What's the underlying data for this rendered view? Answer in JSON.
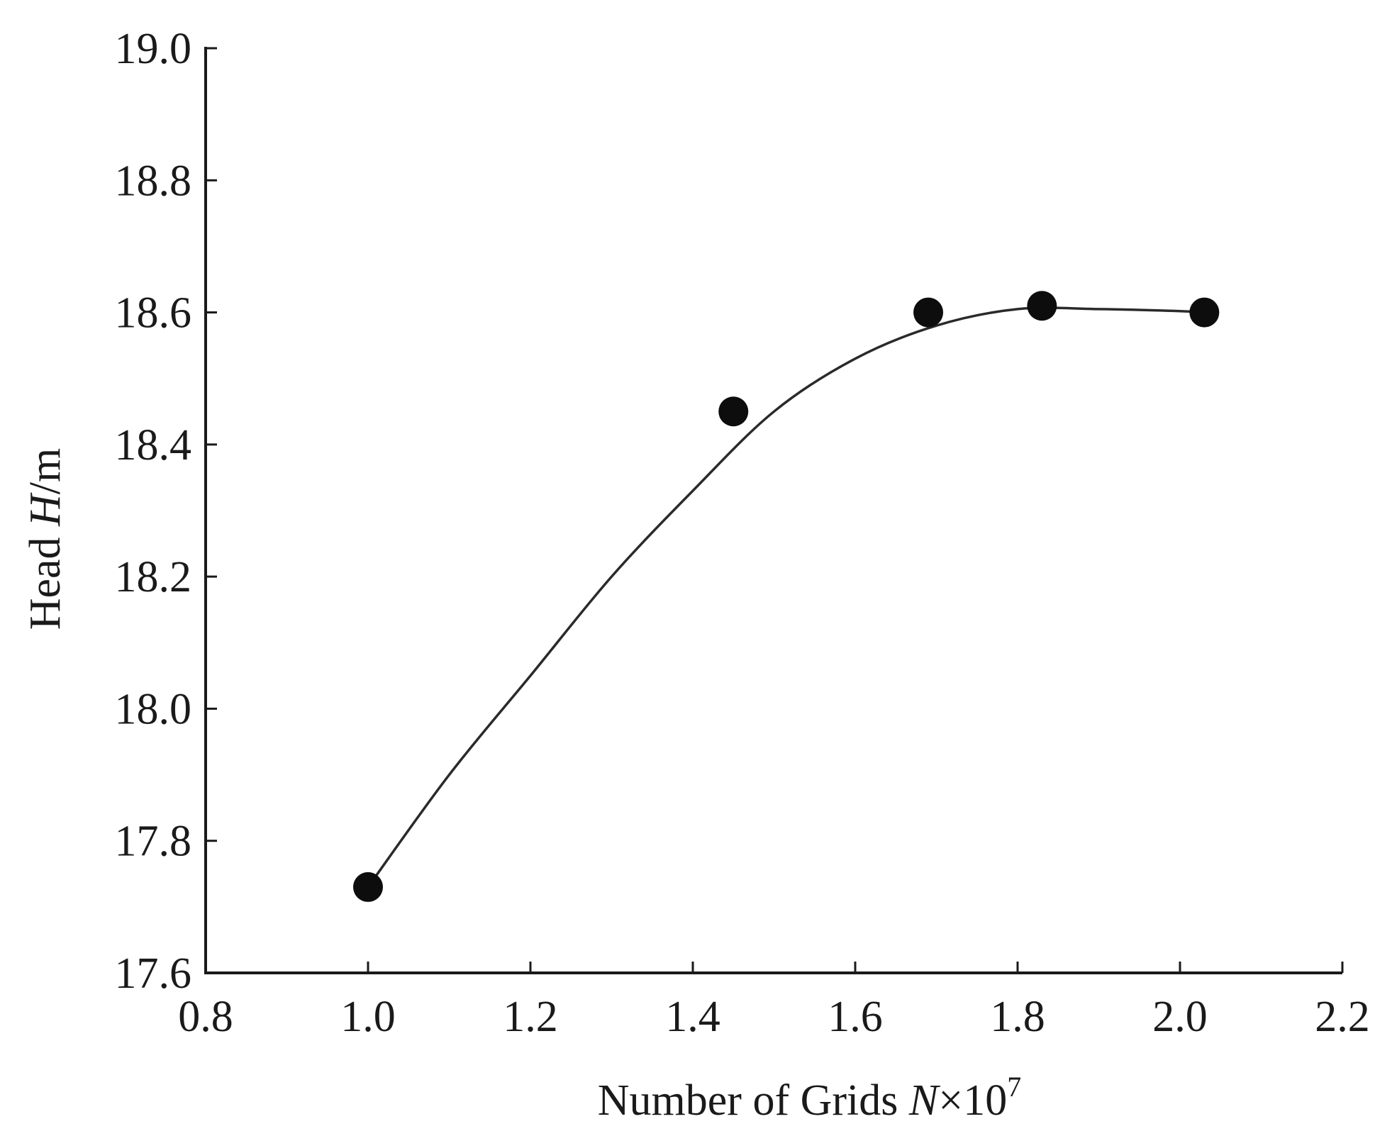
{
  "chart_data": {
    "type": "scatter",
    "xlabel": "Number of Grids N×10^7",
    "xlabel_parts": {
      "prefix": "Number of Grids ",
      "var": "N",
      "mult": "×10",
      "exp": "7"
    },
    "ylabel": "Head H/m",
    "ylabel_parts": {
      "prefix": "Head ",
      "var": "H",
      "suffix": "/m"
    },
    "xlim": [
      0.8,
      2.2
    ],
    "ylim": [
      17.6,
      19.0
    ],
    "xticks": [
      "0.8",
      "1.0",
      "1.2",
      "1.4",
      "1.6",
      "1.8",
      "2.0",
      "2.2"
    ],
    "yticks": [
      "17.6",
      "17.8",
      "18.0",
      "18.2",
      "18.4",
      "18.6",
      "18.8",
      "19.0"
    ],
    "grid": false,
    "series": [
      {
        "marker": "filled-circle",
        "fit": "smooth-curve",
        "x": [
          1.0,
          1.45,
          1.69,
          1.83,
          2.03
        ],
        "y": [
          17.73,
          18.45,
          18.6,
          18.61,
          18.6
        ]
      }
    ],
    "fit_curve": {
      "x": [
        1.0,
        1.1,
        1.2,
        1.3,
        1.4,
        1.5,
        1.6,
        1.7,
        1.8,
        1.9,
        2.0,
        2.03
      ],
      "y": [
        17.73,
        17.9,
        18.05,
        18.2,
        18.33,
        18.45,
        18.53,
        18.58,
        18.605,
        18.605,
        18.602,
        18.6
      ]
    },
    "colors": {
      "axis": "#1a1a1a",
      "marker": "#0d0d0d",
      "curve": "#2a2a2a",
      "background": "#ffffff"
    }
  }
}
